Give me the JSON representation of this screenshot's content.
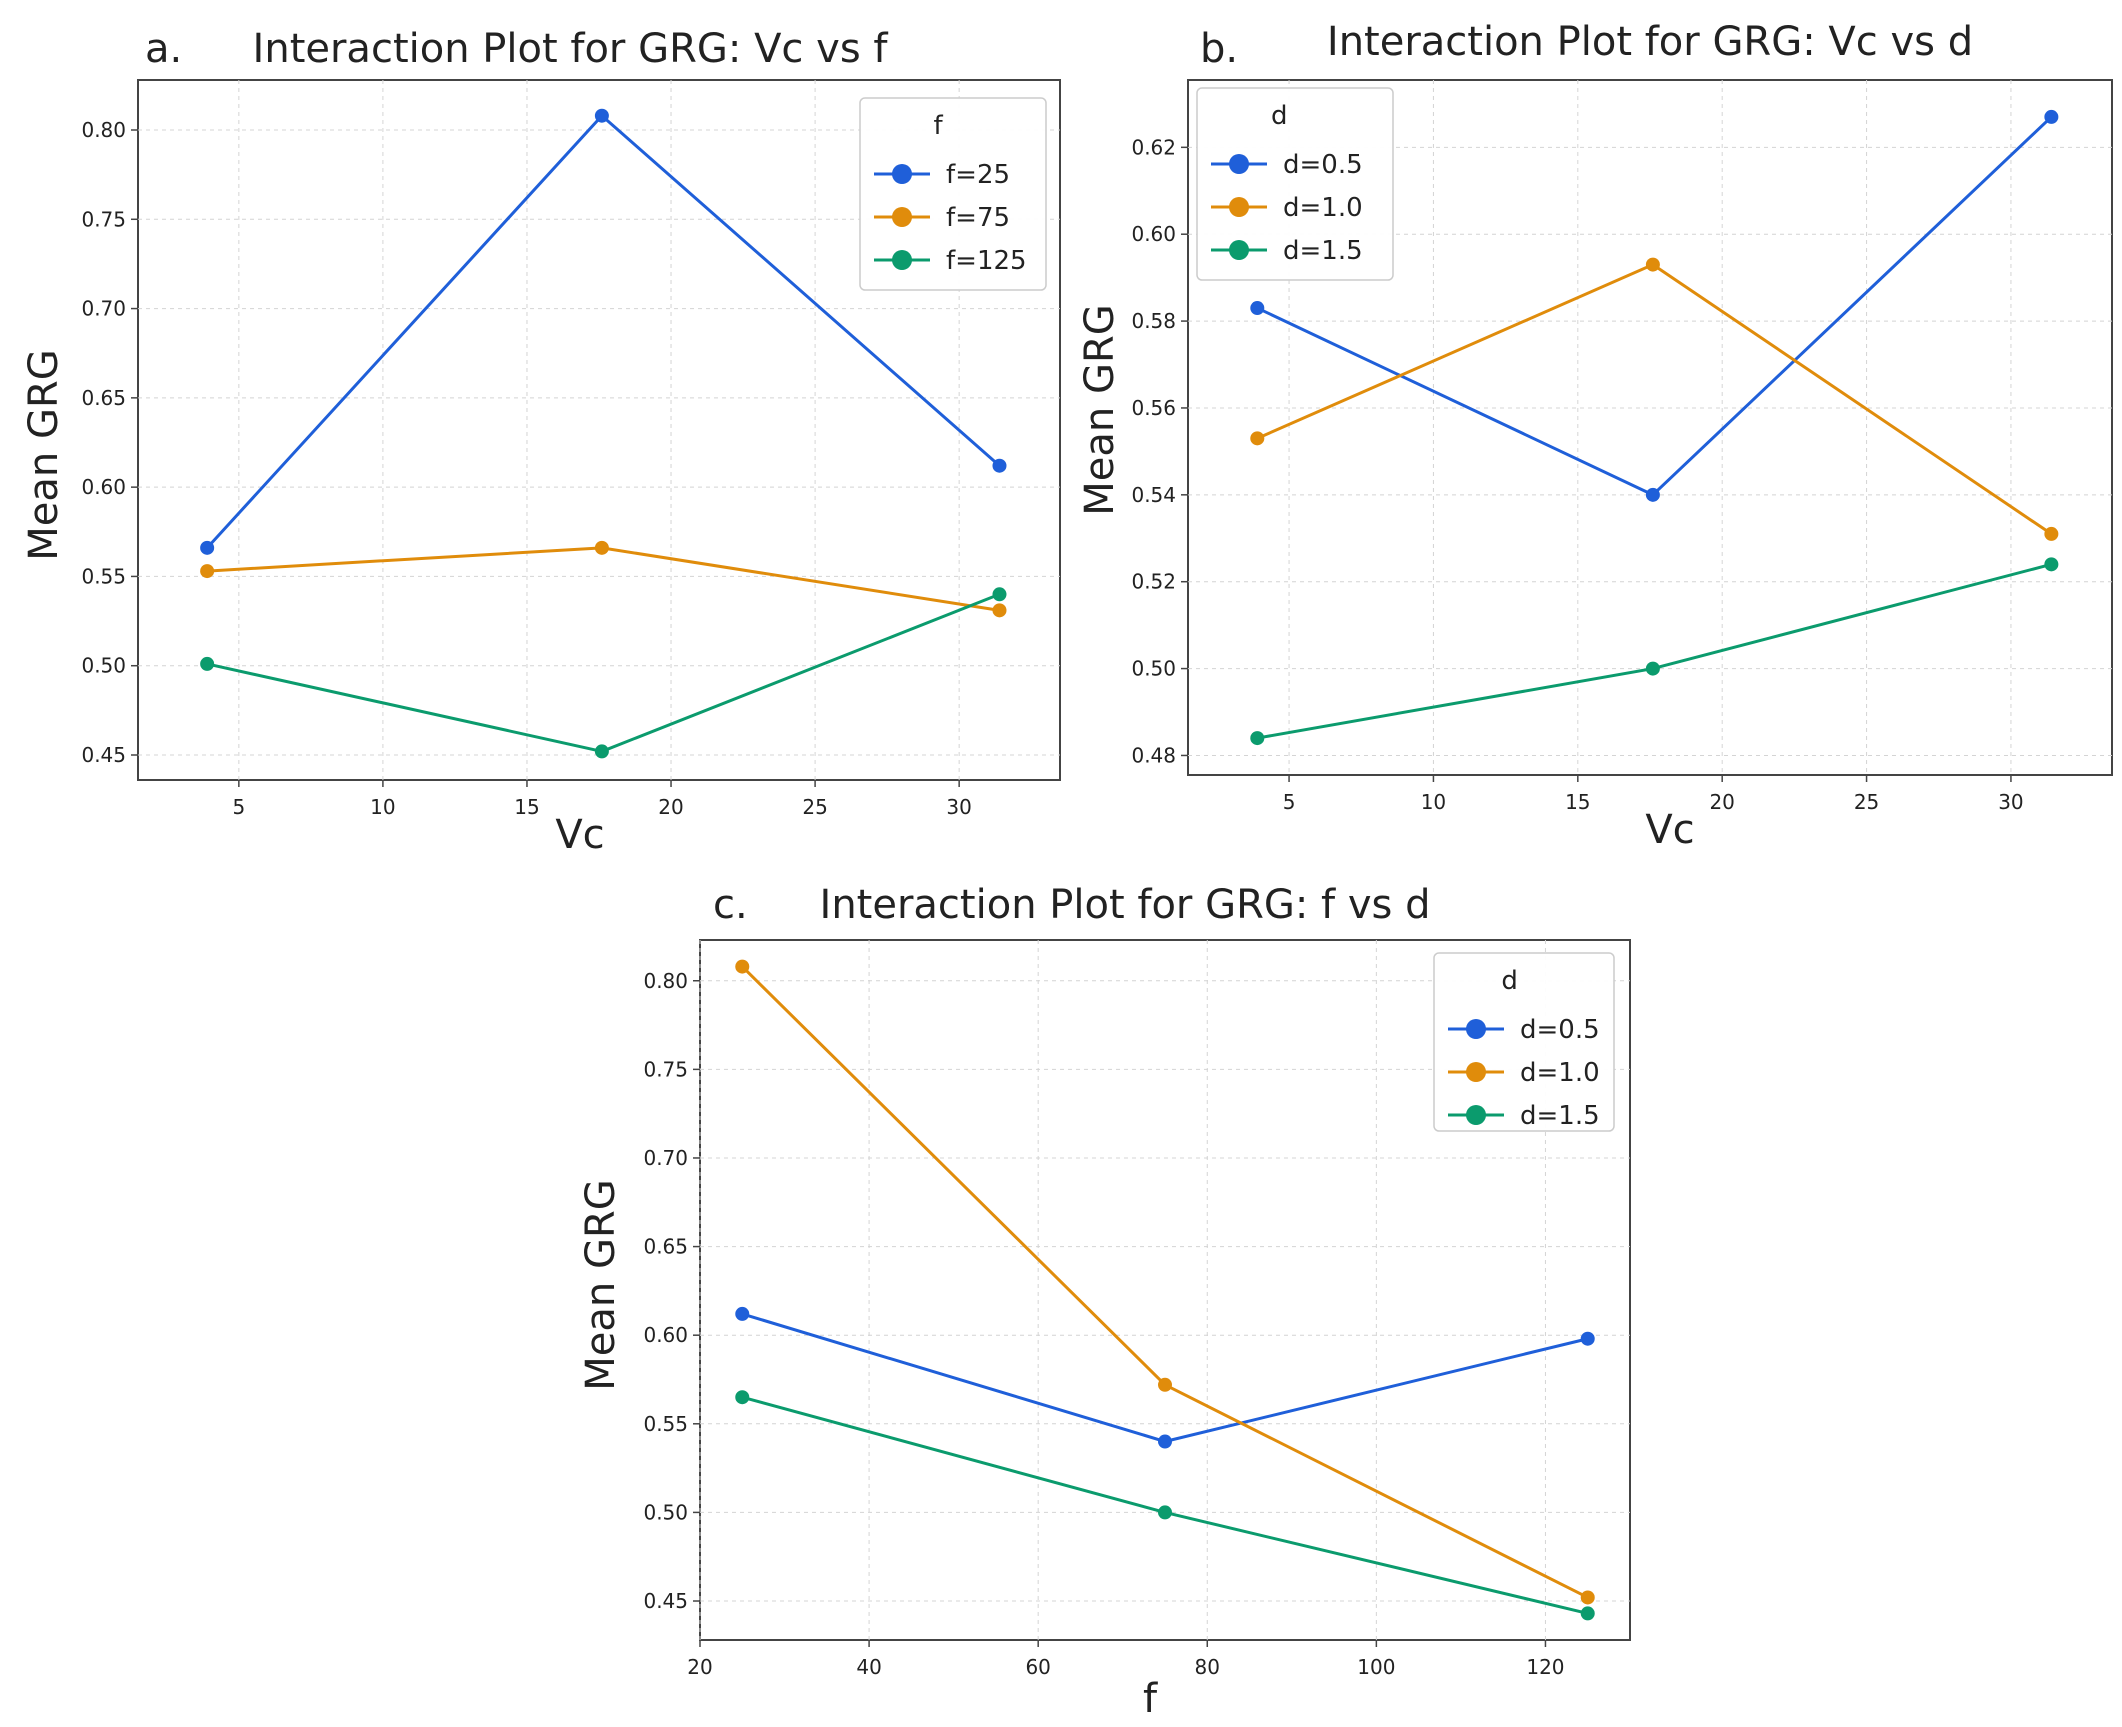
{
  "chart_data": [
    {
      "type": "line",
      "panel": "a.",
      "title": "Interaction Plot for GRG: Vc vs f",
      "xlabel": "Vc",
      "ylabel": "Mean GRG",
      "x": [
        3.9,
        17.6,
        31.4
      ],
      "xlim": [
        1.5,
        33.5
      ],
      "ylim": [
        0.436,
        0.828
      ],
      "xticks": [
        5,
        10,
        15,
        20,
        25,
        30
      ],
      "yticks": [
        0.45,
        0.5,
        0.55,
        0.6,
        0.65,
        0.7,
        0.75,
        0.8
      ],
      "ytick_format": 2,
      "grid": true,
      "legend": {
        "title": "f",
        "position": "top-right"
      },
      "series": [
        {
          "name": "f=25",
          "color": "#1f5fd9",
          "values": [
            0.566,
            0.808,
            0.612
          ]
        },
        {
          "name": "f=75",
          "color": "#e08c0b",
          "values": [
            0.553,
            0.566,
            0.531
          ]
        },
        {
          "name": "f=125",
          "color": "#0b9b6d",
          "values": [
            0.501,
            0.452,
            0.54
          ]
        }
      ]
    },
    {
      "type": "line",
      "panel": "b.",
      "title": "Interaction Plot for GRG: Vc vs d",
      "xlabel": "Vc",
      "ylabel": "Mean GRG",
      "x": [
        3.9,
        17.6,
        31.4
      ],
      "xlim": [
        1.5,
        33.5
      ],
      "ylim": [
        0.4755,
        0.6355
      ],
      "xticks": [
        5,
        10,
        15,
        20,
        25,
        30
      ],
      "yticks": [
        0.48,
        0.5,
        0.52,
        0.54,
        0.56,
        0.58,
        0.6,
        0.62
      ],
      "ytick_format": 2,
      "grid": true,
      "legend": {
        "title": "d",
        "position": "top-left"
      },
      "series": [
        {
          "name": "d=0.5",
          "color": "#1f5fd9",
          "values": [
            0.583,
            0.54,
            0.627
          ]
        },
        {
          "name": "d=1.0",
          "color": "#e08c0b",
          "values": [
            0.553,
            0.593,
            0.531
          ]
        },
        {
          "name": "d=1.5",
          "color": "#0b9b6d",
          "values": [
            0.484,
            0.5,
            0.524
          ]
        }
      ]
    },
    {
      "type": "line",
      "panel": "c.",
      "title": "Interaction Plot for GRG: f vs d",
      "xlabel": "f",
      "ylabel": "Mean GRG",
      "x": [
        25,
        75,
        125
      ],
      "xlim": [
        20,
        130
      ],
      "ylim": [
        0.428,
        0.823
      ],
      "xticks": [
        20,
        40,
        60,
        80,
        100,
        120
      ],
      "yticks": [
        0.45,
        0.5,
        0.55,
        0.6,
        0.65,
        0.7,
        0.75,
        0.8
      ],
      "ytick_format": 2,
      "grid": true,
      "legend": {
        "title": "d",
        "position": "top-right"
      },
      "series": [
        {
          "name": "d=0.5",
          "color": "#1f5fd9",
          "values": [
            0.612,
            0.54,
            0.598
          ]
        },
        {
          "name": "d=1.0",
          "color": "#e08c0b",
          "values": [
            0.808,
            0.572,
            0.452
          ]
        },
        {
          "name": "d=1.5",
          "color": "#0b9b6d",
          "values": [
            0.565,
            0.5,
            0.443
          ]
        }
      ]
    }
  ]
}
